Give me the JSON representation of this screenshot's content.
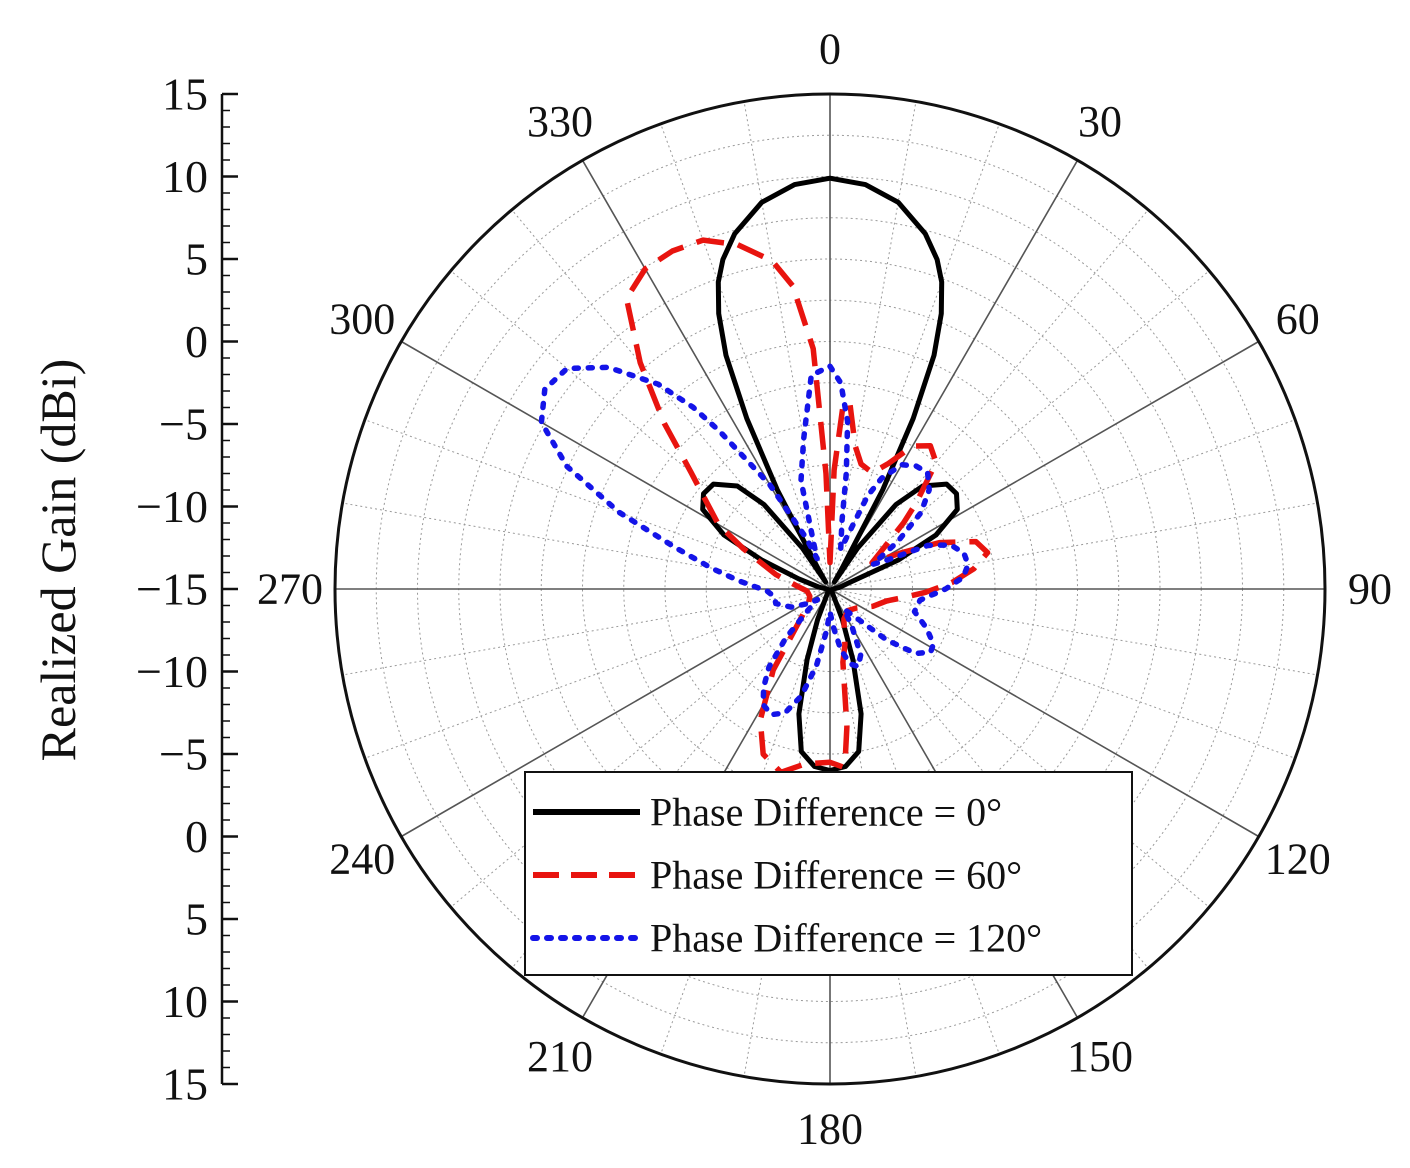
{
  "chart_data": {
    "type": "polar-line",
    "ylabel": "Realized Gain (dBi)",
    "r_min": -15,
    "r_max": 15,
    "r_ring_step": 2.5,
    "angle_direction": "clockwise",
    "zero_position": "top",
    "radial_axis_ticks": [
      "15",
      "10",
      "5",
      "0",
      "−15",
      "−10",
      "−5",
      "0",
      "5",
      "10",
      "−15",
      "−10",
      "−5",
      "0",
      "5",
      "10",
      "15"
    ],
    "radial_axis_values": [
      15,
      10,
      5,
      0,
      -5,
      -10,
      -15,
      -10,
      -5,
      0,
      5,
      10,
      15
    ],
    "radial_axis_labels": [
      "15",
      "10",
      "5",
      "0",
      "−5",
      "−10",
      "−15",
      "−10",
      "−5",
      "0",
      "5",
      "10",
      "15"
    ],
    "angle_ticks": [
      0,
      30,
      60,
      90,
      120,
      150,
      180,
      210,
      240,
      270,
      300,
      330
    ],
    "angle_tick_labels": [
      "0",
      "30",
      "60",
      "90",
      "120",
      "150",
      "180",
      "210",
      "240",
      "270",
      "300",
      "330"
    ],
    "legend_position": "bottom-center",
    "series": [
      {
        "name": "Phase Difference = 0°",
        "color": "#000000",
        "style": "solid",
        "points": [
          [
            0,
            9.9
          ],
          [
            5,
            9.6
          ],
          [
            10,
            8.8
          ],
          [
            15,
            7.3
          ],
          [
            18,
            6.0
          ],
          [
            20,
            4.8
          ],
          [
            22,
            3.0
          ],
          [
            24,
            0.5
          ],
          [
            26,
            -3.5
          ],
          [
            28,
            -8.2
          ],
          [
            30,
            -13.5
          ],
          [
            32,
            -14.5
          ],
          [
            34,
            -12.0
          ],
          [
            38,
            -8.5
          ],
          [
            42,
            -6.6
          ],
          [
            48,
            -5.5
          ],
          [
            53,
            -5.4
          ],
          [
            58,
            -5.9
          ],
          [
            63,
            -7.8
          ],
          [
            67,
            -10.5
          ],
          [
            72,
            -13.8
          ],
          [
            80,
            -14.4
          ],
          [
            90,
            -14.8
          ],
          [
            120,
            -14.9
          ],
          [
            150,
            -14.7
          ],
          [
            158,
            -13.0
          ],
          [
            162,
            -10.5
          ],
          [
            166,
            -7.2
          ],
          [
            170,
            -5.0
          ],
          [
            175,
            -4.2
          ],
          [
            180,
            -4.0
          ],
          [
            185,
            -4.2
          ],
          [
            190,
            -5.0
          ],
          [
            194,
            -7.2
          ],
          [
            198,
            -10.5
          ],
          [
            202,
            -13.0
          ],
          [
            210,
            -14.7
          ],
          [
            240,
            -14.9
          ],
          [
            270,
            -14.8
          ],
          [
            280,
            -14.3
          ],
          [
            288,
            -13.0
          ],
          [
            293,
            -10.5
          ],
          [
            297,
            -7.8
          ],
          [
            302,
            -5.9
          ],
          [
            307,
            -5.4
          ],
          [
            312,
            -5.5
          ],
          [
            318,
            -6.6
          ],
          [
            322,
            -8.5
          ],
          [
            326,
            -12.0
          ],
          [
            328,
            -14.5
          ],
          [
            330,
            -13.5
          ],
          [
            332,
            -8.2
          ],
          [
            334,
            -3.5
          ],
          [
            336,
            0.5
          ],
          [
            338,
            3.0
          ],
          [
            340,
            4.8
          ],
          [
            342,
            6.0
          ],
          [
            345,
            7.3
          ],
          [
            350,
            8.8
          ],
          [
            355,
            9.6
          ],
          [
            360,
            9.9
          ]
        ]
      },
      {
        "name": "Phase Difference = 60°",
        "color": "#e8140f",
        "style": "dashed",
        "points": [
          [
            0,
            -13.4
          ],
          [
            2,
            -7.8
          ],
          [
            4,
            -4.0
          ],
          [
            6,
            -3.6
          ],
          [
            10,
            -6.2
          ],
          [
            14,
            -7.2
          ],
          [
            20,
            -7.5
          ],
          [
            25,
            -6.6
          ],
          [
            30,
            -5.0
          ],
          [
            35,
            -4.4
          ],
          [
            40,
            -5.0
          ],
          [
            45,
            -7.6
          ],
          [
            48,
            -9.0
          ],
          [
            52,
            -10.7
          ],
          [
            58,
            -12.0
          ],
          [
            63,
            -10.2
          ],
          [
            67,
            -7.8
          ],
          [
            72,
            -5.7
          ],
          [
            77,
            -5.2
          ],
          [
            82,
            -6.2
          ],
          [
            87,
            -7.6
          ],
          [
            92,
            -9.2
          ],
          [
            97,
            -10.6
          ],
          [
            102,
            -11.5
          ],
          [
            112,
            -12.2
          ],
          [
            125,
            -13.0
          ],
          [
            140,
            -13.3
          ],
          [
            155,
            -13.0
          ],
          [
            165,
            -11.5
          ],
          [
            170,
            -10.5
          ],
          [
            173,
            -6.6
          ],
          [
            175,
            -4.5
          ],
          [
            176,
            -4.2
          ],
          [
            180,
            -4.5
          ],
          [
            188,
            -4.3
          ],
          [
            195,
            -3.5
          ],
          [
            202,
            -4.2
          ],
          [
            208,
            -6.0
          ],
          [
            215,
            -9.0
          ],
          [
            222,
            -12.0
          ],
          [
            235,
            -13.4
          ],
          [
            250,
            -13.7
          ],
          [
            265,
            -13.6
          ],
          [
            275,
            -13.0
          ],
          [
            285,
            -11.6
          ],
          [
            295,
            -9.2
          ],
          [
            300,
            -7.2
          ],
          [
            305,
            -5.9
          ],
          [
            310,
            -4.0
          ],
          [
            315,
            -0.8
          ],
          [
            320,
            2.9
          ],
          [
            325,
            6.5
          ],
          [
            330,
            7.4
          ],
          [
            335,
            7.6
          ],
          [
            340,
            7.5
          ],
          [
            345,
            6.6
          ],
          [
            350,
            5.2
          ],
          [
            353,
            3.5
          ],
          [
            356,
            -0.4
          ],
          [
            358,
            -8.0
          ],
          [
            360,
            -13.4
          ]
        ]
      },
      {
        "name": "Phase Difference = 120°",
        "color": "#1414e8",
        "style": "dotted",
        "points": [
          [
            0,
            -1.5
          ],
          [
            3,
            -2.5
          ],
          [
            6,
            -4.8
          ],
          [
            8,
            -7.9
          ],
          [
            10,
            -10.8
          ],
          [
            15,
            -12.5
          ],
          [
            22,
            -8.9
          ],
          [
            25,
            -7.6
          ],
          [
            30,
            -6.3
          ],
          [
            35,
            -5.9
          ],
          [
            40,
            -5.8
          ],
          [
            45,
            -6.5
          ],
          [
            50,
            -7.8
          ],
          [
            55,
            -10.0
          ],
          [
            60,
            -12.0
          ],
          [
            63,
            -11.2
          ],
          [
            66,
            -8.5
          ],
          [
            70,
            -7.2
          ],
          [
            75,
            -6.6
          ],
          [
            80,
            -6.5
          ],
          [
            85,
            -6.9
          ],
          [
            90,
            -8.0
          ],
          [
            97,
            -9.5
          ],
          [
            105,
            -9.7
          ],
          [
            112,
            -8.7
          ],
          [
            118,
            -7.9
          ],
          [
            122,
            -7.8
          ],
          [
            127,
            -8.5
          ],
          [
            132,
            -10.4
          ],
          [
            138,
            -12.7
          ],
          [
            145,
            -13.5
          ],
          [
            150,
            -12.3
          ],
          [
            155,
            -10.6
          ],
          [
            160,
            -10.0
          ],
          [
            165,
            -10.3
          ],
          [
            170,
            -11.3
          ],
          [
            175,
            -12.7
          ],
          [
            180,
            -13.6
          ],
          [
            185,
            -12.4
          ],
          [
            190,
            -10.3
          ],
          [
            195,
            -8.3
          ],
          [
            200,
            -7.0
          ],
          [
            205,
            -6.6
          ],
          [
            210,
            -6.9
          ],
          [
            214,
            -7.8
          ],
          [
            218,
            -9.0
          ],
          [
            222,
            -11.0
          ],
          [
            226,
            -13.2
          ],
          [
            230,
            -14.0
          ],
          [
            235,
            -13.5
          ],
          [
            245,
            -12.4
          ],
          [
            255,
            -11.6
          ],
          [
            262,
            -11.6
          ],
          [
            268,
            -11.2
          ],
          [
            275,
            -9.5
          ],
          [
            280,
            -7.7
          ],
          [
            285,
            -5.3
          ],
          [
            290,
            -1.4
          ],
          [
            295,
            2.6
          ],
          [
            300,
            5.2
          ],
          [
            305,
            6.1
          ],
          [
            310,
            5.8
          ],
          [
            315,
            4.0
          ],
          [
            320,
            1.2
          ],
          [
            323,
            -1.2
          ],
          [
            325,
            -3.3
          ],
          [
            330,
            -7.7
          ],
          [
            335,
            -11.6
          ],
          [
            337,
            -13.0
          ],
          [
            340,
            -12.2
          ],
          [
            345,
            -8.2
          ],
          [
            350,
            -5.8
          ],
          [
            355,
            -2.0
          ],
          [
            360,
            -1.5
          ]
        ]
      }
    ]
  }
}
